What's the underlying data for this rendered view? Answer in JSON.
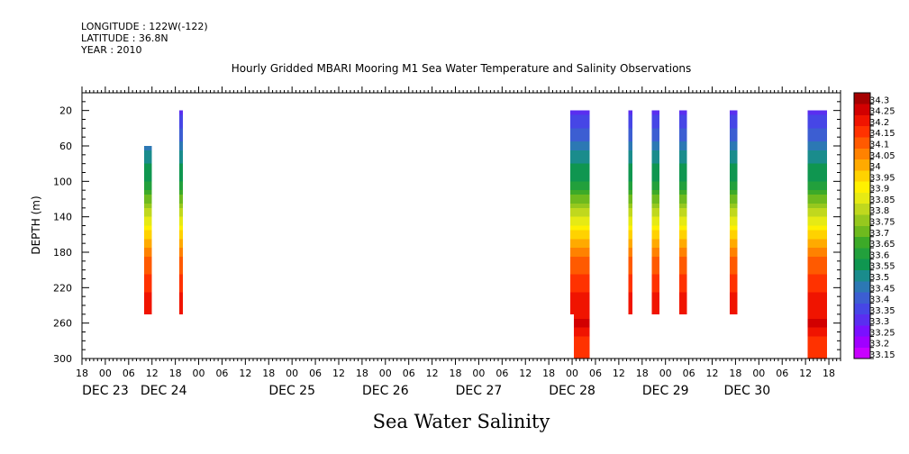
{
  "header": {
    "longitude": "LONGITUDE : 122W(-122)",
    "latitude": "LATITUDE : 36.8N",
    "year": "YEAR : 2010"
  },
  "chart_data": {
    "type": "heatmap",
    "title": "Hourly Gridded MBARI Mooring M1 Sea Water Temperature and Salinity Observations",
    "xlabel": "Sea Water Salinity",
    "ylabel": "DEPTH (m)",
    "grid": false,
    "x_unit": "hours since 2010-12-23 00:00",
    "xlim": [
      -6,
      189
    ],
    "ylim": [
      300,
      0
    ],
    "y_ticks": [
      20,
      60,
      100,
      140,
      180,
      220,
      260,
      300
    ],
    "x_hour_ticks": [
      {
        "h": -6,
        "label": "18"
      },
      {
        "h": 0,
        "label": "00"
      },
      {
        "h": 6,
        "label": "06"
      },
      {
        "h": 12,
        "label": "12"
      },
      {
        "h": 18,
        "label": "18"
      },
      {
        "h": 24,
        "label": "00"
      },
      {
        "h": 30,
        "label": "06"
      },
      {
        "h": 36,
        "label": "12"
      },
      {
        "h": 42,
        "label": "18"
      },
      {
        "h": 48,
        "label": "00"
      },
      {
        "h": 54,
        "label": "06"
      },
      {
        "h": 60,
        "label": "12"
      },
      {
        "h": 66,
        "label": "18"
      },
      {
        "h": 72,
        "label": "00"
      },
      {
        "h": 78,
        "label": "06"
      },
      {
        "h": 84,
        "label": "12"
      },
      {
        "h": 90,
        "label": "18"
      },
      {
        "h": 96,
        "label": "00"
      },
      {
        "h": 102,
        "label": "06"
      },
      {
        "h": 108,
        "label": "12"
      },
      {
        "h": 114,
        "label": "18"
      },
      {
        "h": 120,
        "label": "00"
      },
      {
        "h": 126,
        "label": "06"
      },
      {
        "h": 132,
        "label": "12"
      },
      {
        "h": 138,
        "label": "18"
      },
      {
        "h": 144,
        "label": "00"
      },
      {
        "h": 150,
        "label": "06"
      },
      {
        "h": 156,
        "label": "12"
      },
      {
        "h": 162,
        "label": "18"
      },
      {
        "h": 168,
        "label": "00"
      },
      {
        "h": 174,
        "label": "06"
      },
      {
        "h": 180,
        "label": "12"
      },
      {
        "h": 186,
        "label": "18"
      }
    ],
    "x_day_labels": [
      {
        "h": 0,
        "label": "DEC 23"
      },
      {
        "h": 15,
        "label": "DEC 24"
      },
      {
        "h": 48,
        "label": "DEC 25"
      },
      {
        "h": 72,
        "label": "DEC 26"
      },
      {
        "h": 96,
        "label": "DEC 27"
      },
      {
        "h": 120,
        "label": "DEC 28"
      },
      {
        "h": 144,
        "label": "DEC 29"
      },
      {
        "h": 165,
        "label": "DEC 30"
      }
    ],
    "colorbar": {
      "levels": [
        33.15,
        33.2,
        33.25,
        33.3,
        33.35,
        33.4,
        33.45,
        33.5,
        33.55,
        33.6,
        33.65,
        33.7,
        33.75,
        33.8,
        33.85,
        33.9,
        33.95,
        34,
        34.05,
        34.1,
        34.15,
        34.2,
        34.25,
        34.3
      ],
      "labels": [
        "33.15",
        "33.2",
        "33.25",
        "33.3",
        "33.35",
        "33.4",
        "33.45",
        "33.5",
        "33.55",
        "33.6",
        "33.65",
        "33.7",
        "33.75",
        "33.8",
        "33.85",
        "33.9",
        "33.95",
        "34",
        "34.05",
        "34.1",
        "34.15",
        "34.2",
        "34.25",
        "34.3"
      ],
      "colors": [
        "#c800ff",
        "#a000ff",
        "#7a10ff",
        "#5a2ef0",
        "#4646e6",
        "#3c5ed2",
        "#2c78b4",
        "#1a8c8c",
        "#0f9650",
        "#22a03c",
        "#3caa28",
        "#6eba1e",
        "#96c81e",
        "#c0d81e",
        "#e6ea14",
        "#fff000",
        "#ffd200",
        "#ffaa00",
        "#ff8200",
        "#ff5a00",
        "#ff3200",
        "#f01400",
        "#d20000",
        "#a50000"
      ]
    },
    "salinity_profile": {
      "depths": [
        20,
        40,
        60,
        80,
        100,
        120,
        140,
        160,
        180,
        200,
        220,
        240,
        250,
        260,
        280,
        300
      ],
      "values": [
        33.33,
        33.4,
        33.48,
        33.55,
        33.6,
        33.72,
        33.85,
        33.98,
        34.08,
        34.14,
        34.19,
        34.22,
        34.24,
        34.26,
        34.18,
        34.2
      ]
    },
    "series": [
      {
        "start_hour": 10,
        "end_hour": 12,
        "top_depth": 60,
        "bottom_depth": 250
      },
      {
        "start_hour": 19,
        "end_hour": 20,
        "top_depth": 20,
        "bottom_depth": 250
      },
      {
        "start_hour": 119.5,
        "end_hour": 120.5,
        "top_depth": 20,
        "bottom_depth": 250
      },
      {
        "start_hour": 120.5,
        "end_hour": 124.5,
        "top_depth": 20,
        "bottom_depth": 300
      },
      {
        "start_hour": 134.5,
        "end_hour": 135.5,
        "top_depth": 20,
        "bottom_depth": 250
      },
      {
        "start_hour": 140.5,
        "end_hour": 142.5,
        "top_depth": 20,
        "bottom_depth": 250
      },
      {
        "start_hour": 147.5,
        "end_hour": 149.5,
        "top_depth": 20,
        "bottom_depth": 250
      },
      {
        "start_hour": 160.5,
        "end_hour": 162.5,
        "top_depth": 20,
        "bottom_depth": 250
      },
      {
        "start_hour": 180.5,
        "end_hour": 185.5,
        "top_depth": 20,
        "bottom_depth": 300
      }
    ]
  }
}
